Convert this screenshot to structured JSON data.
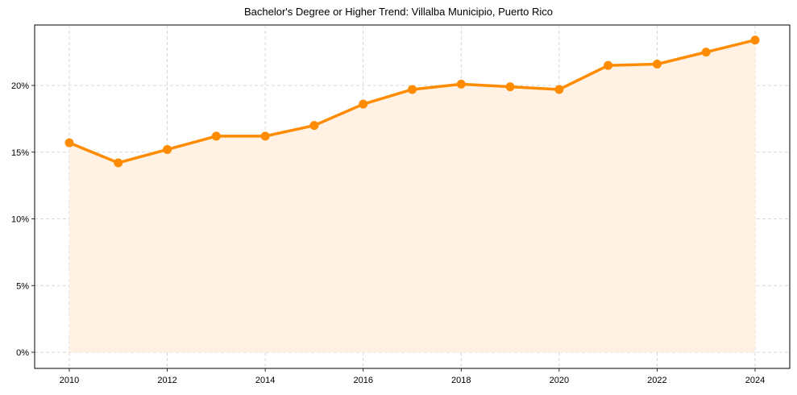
{
  "chart_data": {
    "type": "line",
    "title": "Bachelor's Degree or Higher Trend: Villalba Municipio, Puerto Rico",
    "xlabel": "",
    "ylabel": "",
    "x": [
      2010,
      2011,
      2012,
      2013,
      2014,
      2015,
      2016,
      2017,
      2018,
      2019,
      2020,
      2021,
      2022,
      2023,
      2024
    ],
    "series": [
      {
        "name": "Bachelor's Degree or Higher (%)",
        "values": [
          15.7,
          14.2,
          15.2,
          16.2,
          16.2,
          17.0,
          18.6,
          19.7,
          20.1,
          19.9,
          19.7,
          21.5,
          21.6,
          22.5,
          23.4
        ],
        "color": "#ff8c00",
        "fill": true,
        "fill_color": "#fff1e3",
        "markers": true
      }
    ],
    "xticks": [
      "2010",
      "2012",
      "2014",
      "2016",
      "2018",
      "2020",
      "2022",
      "2024"
    ],
    "yticks": [
      "0%",
      "5%",
      "10%",
      "15%",
      "20%"
    ],
    "ytick_values": [
      0,
      5,
      10,
      15,
      20
    ],
    "xlim": [
      2009.3,
      2024.7
    ],
    "ylim": [
      -1.2,
      24.5
    ],
    "grid": true,
    "legend": null
  }
}
